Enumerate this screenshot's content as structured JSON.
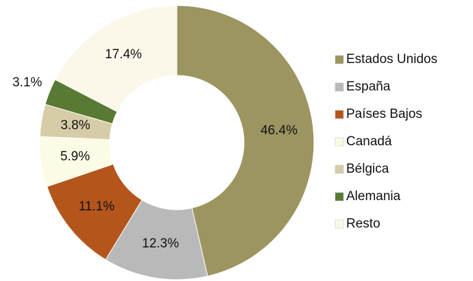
{
  "chart_data": {
    "type": "donut",
    "categories": [
      "Estados Unidos",
      "España",
      "Países Bajos",
      "Canadá",
      "Bélgica",
      "Alemania",
      "Resto"
    ],
    "values": [
      46.4,
      12.3,
      11.1,
      5.9,
      3.8,
      3.1,
      17.4
    ],
    "value_labels": [
      "46.4%",
      "12.3%",
      "11.1%",
      "5.9%",
      "3.8%",
      "3.1%",
      "17.4%"
    ],
    "colors": [
      "#9c9560",
      "#b9b9b9",
      "#b4561b",
      "#fbfbe6",
      "#d6cda8",
      "#587a33",
      "#fbf8ea"
    ],
    "legend": "right"
  }
}
